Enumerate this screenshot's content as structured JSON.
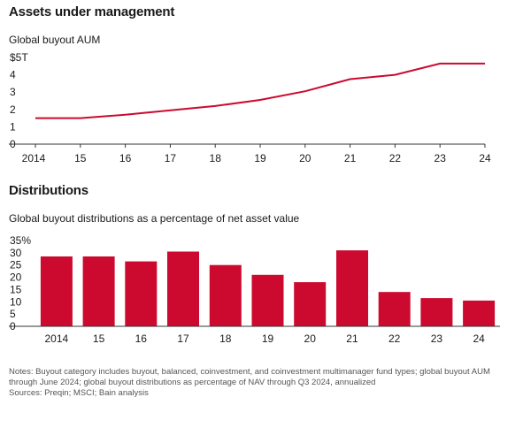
{
  "aum_section": {
    "title": "Assets under management",
    "subtitle": "Global buyout AUM"
  },
  "dist_section": {
    "title": "Distributions",
    "subtitle": "Global buyout distributions as a percentage of net asset value"
  },
  "colors": {
    "accent": "#cc0a2f",
    "axis": "#333333",
    "text": "#1a1a1a",
    "notes": "#555555"
  },
  "notes": {
    "line1": "Notes: Buyout category includes buyout, balanced, coinvestment, and coinvestment multimanager fund types; global buyout AUM through June 2024; global buyout distributions as percentage of NAV through Q3 2024, annualized",
    "line2": "Sources: Preqin; MSCI; Bain analysis"
  },
  "chart_data": [
    {
      "type": "line",
      "title": "Assets under management",
      "subtitle": "Global buyout AUM",
      "x": [
        "2014",
        "15",
        "16",
        "17",
        "18",
        "19",
        "20",
        "21",
        "22",
        "23",
        "24"
      ],
      "series": [
        {
          "values": [
            1.5,
            1.5,
            1.7,
            1.95,
            2.2,
            2.55,
            3.05,
            3.75,
            4.0,
            4.65,
            4.65
          ]
        }
      ],
      "yticks": [
        "0",
        "1",
        "2",
        "3",
        "4",
        "$5T"
      ],
      "ylim": [
        0,
        5
      ],
      "grid": false
    },
    {
      "type": "bar",
      "title": "Distributions",
      "subtitle": "Global buyout distributions as a percentage of net asset value",
      "categories": [
        "2014",
        "15",
        "16",
        "17",
        "18",
        "19",
        "20",
        "21",
        "22",
        "23",
        "24"
      ],
      "values": [
        28.5,
        28.5,
        26.5,
        30.5,
        25,
        21,
        18,
        31,
        14,
        11.5,
        10.5
      ],
      "yticks": [
        "0",
        "5",
        "10",
        "15",
        "20",
        "25",
        "30",
        "35%"
      ],
      "ylim": [
        0,
        35
      ],
      "grid": false
    }
  ]
}
